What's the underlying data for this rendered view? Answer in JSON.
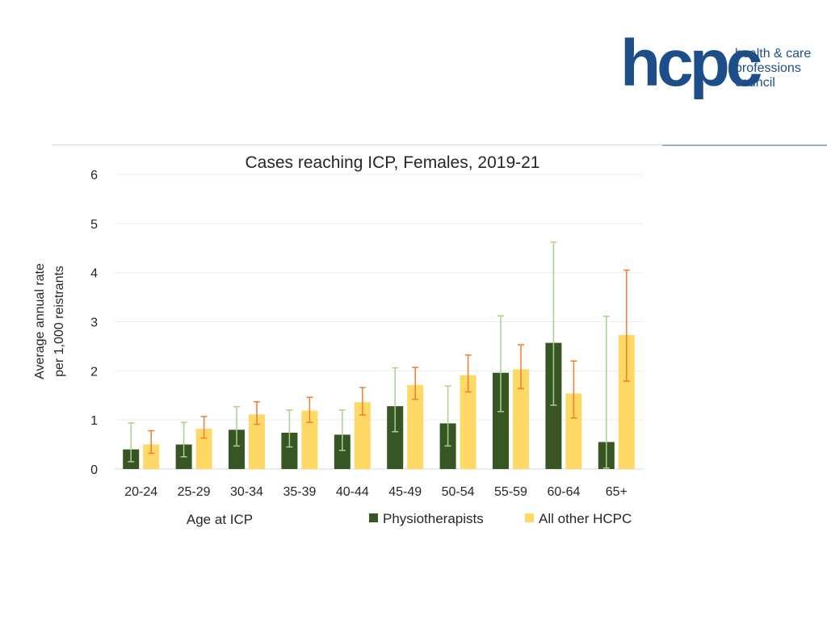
{
  "logo": {
    "mark": "hcpc",
    "line1": "health & care",
    "line2": "professions",
    "line3": "council",
    "color": "#1d4e89"
  },
  "chart_data": {
    "type": "bar",
    "title": "Cases reaching ICP, Females, 2019-21",
    "xlabel": "Age at ICP",
    "ylabel_line1": "Average annual rate",
    "ylabel_line2": "per 1,000 reistrants",
    "ylim": [
      0,
      6
    ],
    "yticks": [
      0,
      1,
      2,
      3,
      4,
      5,
      6
    ],
    "grid": true,
    "legend_position": "bottom-right",
    "categories": [
      "20-24",
      "25-29",
      "30-34",
      "35-39",
      "40-44",
      "45-49",
      "50-54",
      "55-59",
      "60-64",
      "65+"
    ],
    "series": [
      {
        "name": "Physiotherapists",
        "color": "#375623",
        "error_color": "#a9d18e",
        "values": [
          0.4,
          0.5,
          0.8,
          0.74,
          0.7,
          1.28,
          0.93,
          1.96,
          2.57,
          0.55
        ],
        "lower": [
          0.15,
          0.25,
          0.47,
          0.45,
          0.38,
          0.76,
          0.47,
          1.17,
          1.3,
          0.02
        ],
        "upper": [
          0.94,
          0.95,
          1.27,
          1.2,
          1.2,
          2.06,
          1.69,
          3.12,
          4.62,
          3.11
        ]
      },
      {
        "name": "All other HCPC",
        "color": "#ffd966",
        "error_color": "#ed7d31",
        "values": [
          0.5,
          0.82,
          1.11,
          1.19,
          1.36,
          1.71,
          1.91,
          2.03,
          1.54,
          2.73
        ],
        "lower": [
          0.32,
          0.63,
          0.91,
          0.95,
          1.1,
          1.42,
          1.57,
          1.64,
          1.04,
          1.79
        ],
        "upper": [
          0.78,
          1.07,
          1.37,
          1.46,
          1.66,
          2.07,
          2.32,
          2.53,
          2.2,
          4.05
        ]
      }
    ]
  }
}
